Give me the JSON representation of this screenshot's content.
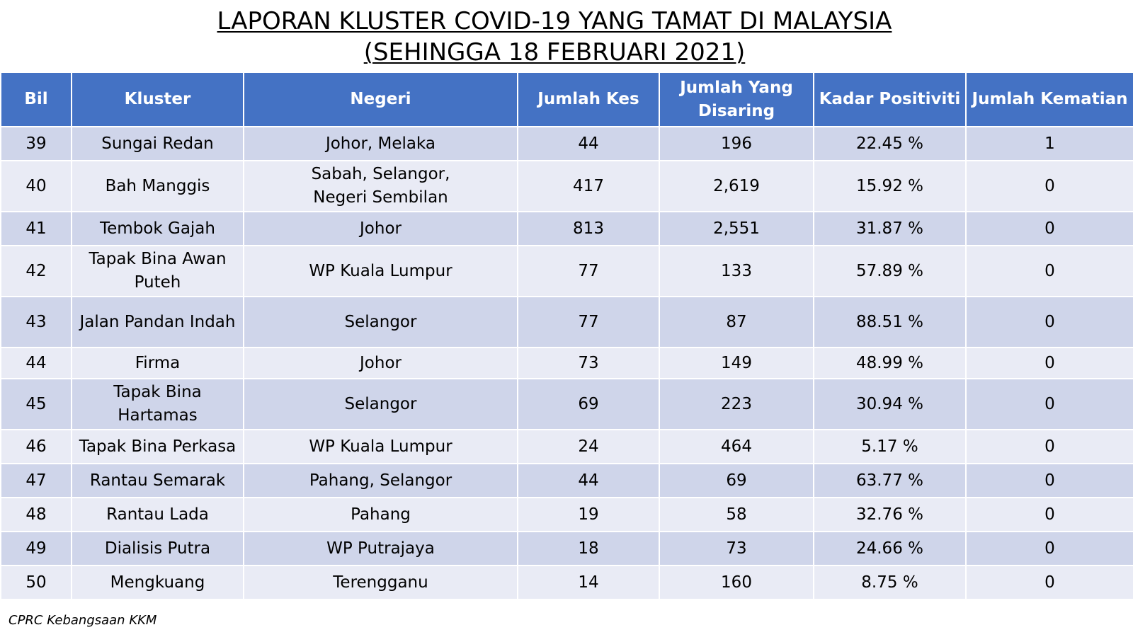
{
  "title": {
    "line1": "LAPORAN KLUSTER COVID-19 YANG TAMAT DI MALAYSIA",
    "line2": "(SEHINGGA  18 FEBRUARI 2021)"
  },
  "table": {
    "headers": [
      "Bil",
      "Kluster",
      "Negeri",
      "Jumlah Kes",
      "Jumlah Yang Disaring",
      "Kadar Positiviti",
      "Jumlah Kematian"
    ],
    "rows": [
      {
        "bil": "39",
        "kluster": "Sungai Redan",
        "negeri": "Johor, Melaka",
        "kes": "44",
        "disaring": "196",
        "positiviti": "22.45 %",
        "kematian": "1"
      },
      {
        "bil": "40",
        "kluster": "Bah Manggis",
        "negeri": "Sabah, Selangor, Negeri Sembilan",
        "kes": "417",
        "disaring": "2,619",
        "positiviti": "15.92 %",
        "kematian": "0"
      },
      {
        "bil": "41",
        "kluster": "Tembok Gajah",
        "negeri": "Johor",
        "kes": "813",
        "disaring": "2,551",
        "positiviti": "31.87 %",
        "kematian": "0"
      },
      {
        "bil": "42",
        "kluster": "Tapak Bina Awan Puteh",
        "negeri": "WP Kuala Lumpur",
        "kes": "77",
        "disaring": "133",
        "positiviti": "57.89 %",
        "kematian": "0"
      },
      {
        "bil": "43",
        "kluster": "Jalan Pandan Indah",
        "negeri": "Selangor",
        "kes": "77",
        "disaring": "87",
        "positiviti": "88.51 %",
        "kematian": "0"
      },
      {
        "bil": "44",
        "kluster": "Firma",
        "negeri": "Johor",
        "kes": "73",
        "disaring": "149",
        "positiviti": "48.99 %",
        "kematian": "0"
      },
      {
        "bil": "45",
        "kluster": "Tapak Bina Hartamas",
        "negeri": "Selangor",
        "kes": "69",
        "disaring": "223",
        "positiviti": "30.94 %",
        "kematian": "0"
      },
      {
        "bil": "46",
        "kluster": "Tapak Bina Perkasa",
        "negeri": "WP Kuala Lumpur",
        "kes": "24",
        "disaring": "464",
        "positiviti": "5.17 %",
        "kematian": "0"
      },
      {
        "bil": "47",
        "kluster": "Rantau Semarak",
        "negeri": "Pahang, Selangor",
        "kes": "44",
        "disaring": "69",
        "positiviti": "63.77 %",
        "kematian": "0"
      },
      {
        "bil": "48",
        "kluster": "Rantau Lada",
        "negeri": "Pahang",
        "kes": "19",
        "disaring": "58",
        "positiviti": "32.76 %",
        "kematian": "0"
      },
      {
        "bil": "49",
        "kluster": "Dialisis Putra",
        "negeri": "WP Putrajaya",
        "kes": "18",
        "disaring": "73",
        "positiviti": "24.66 %",
        "kematian": "0"
      },
      {
        "bil": "50",
        "kluster": "Mengkuang",
        "negeri": "Terengganu",
        "kes": "14",
        "disaring": "160",
        "positiviti": "8.75 %",
        "kematian": "0"
      }
    ]
  },
  "footer": {
    "source": "CPRC Kebangsaan KKM"
  },
  "colors": {
    "header_bg": "#4472c4",
    "row_odd": "#cfd5ea",
    "row_even": "#e9ebf5"
  }
}
